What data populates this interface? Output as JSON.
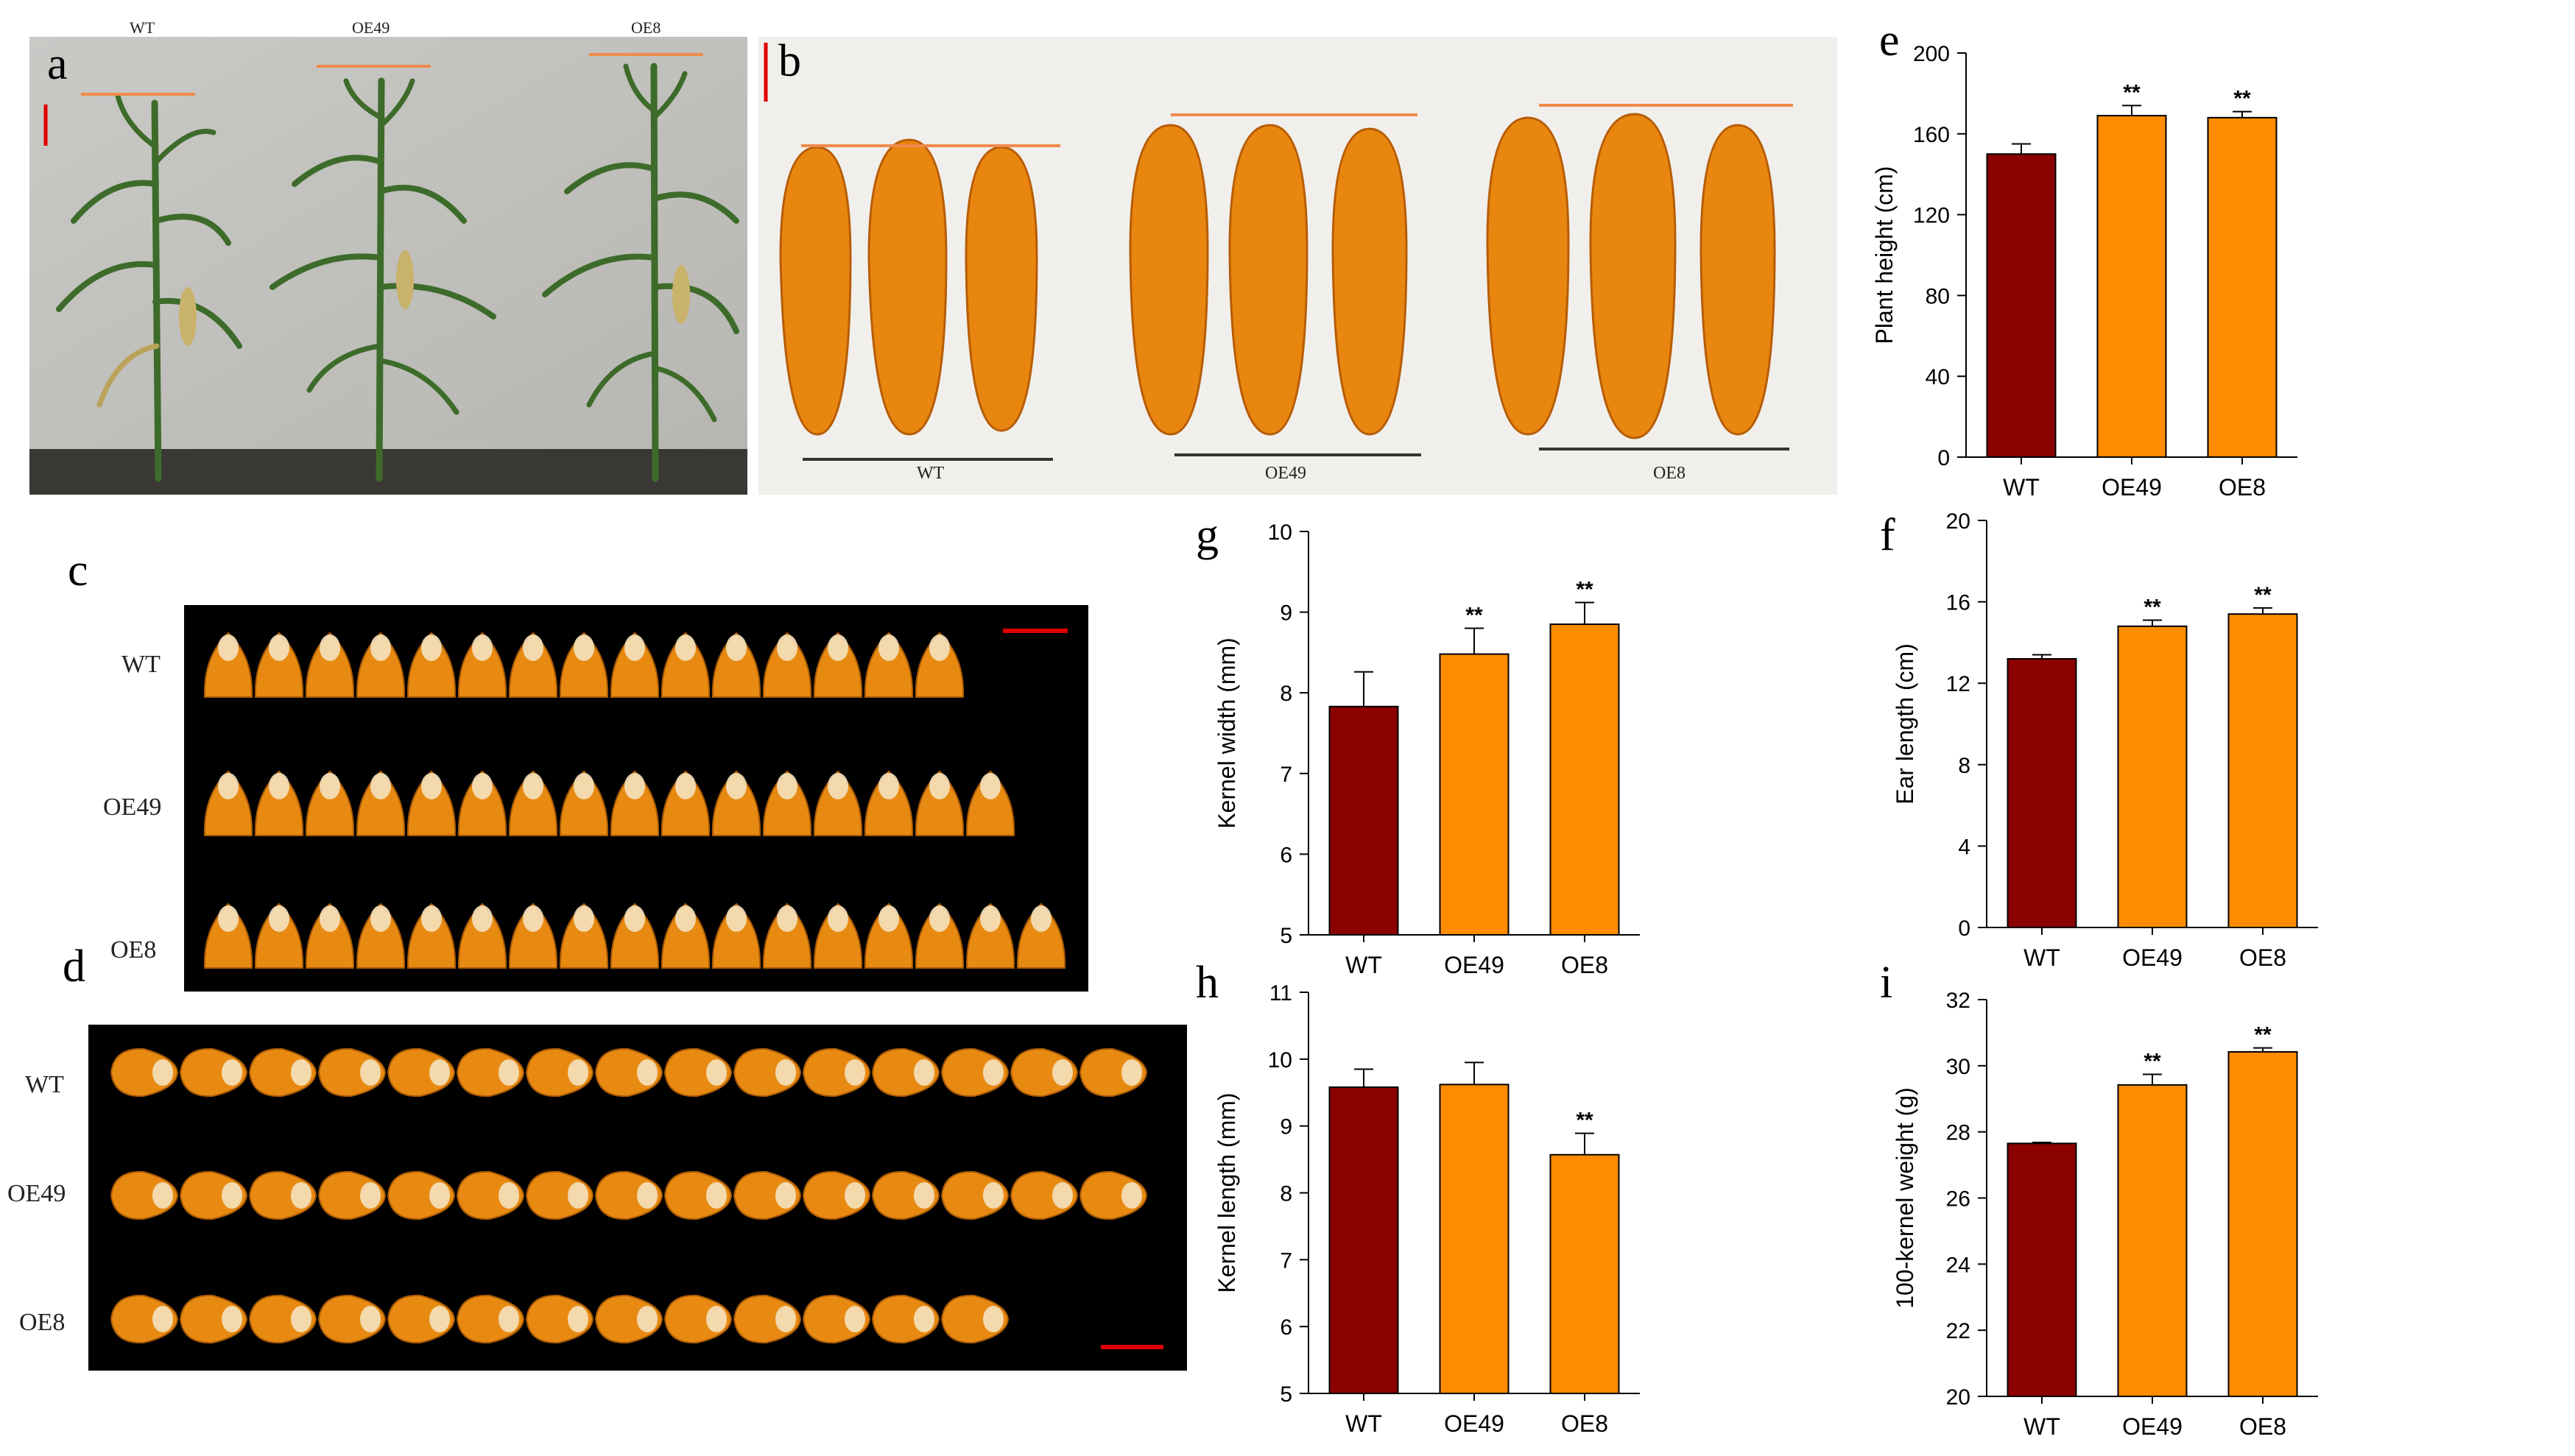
{
  "panels": {
    "a": {
      "letter": "a",
      "plants": [
        "WT",
        "OE49",
        "OE8"
      ]
    },
    "b": {
      "letter": "b",
      "ears": [
        "WT",
        "OE49",
        "OE8"
      ]
    },
    "c": {
      "letter": "c",
      "rows": [
        "WT",
        "OE49",
        "OE8"
      ]
    },
    "d": {
      "letter": "d",
      "rows": [
        "WT",
        "OE49",
        "OE8"
      ]
    }
  },
  "colors": {
    "wt_bar": "#8b0000",
    "oe_bar": "#ff8c00",
    "scale_bar": "#e00000",
    "height_line": "#f08a4b",
    "kernel": "#e88a12",
    "photo_bg": "#000000"
  },
  "chart_data": [
    {
      "id": "e",
      "letter": "e",
      "type": "bar",
      "categories": [
        "WT",
        "OE49",
        "OE8"
      ],
      "values": [
        150,
        169,
        168
      ],
      "errors": [
        5,
        5,
        3
      ],
      "significance": [
        "",
        "**",
        "**"
      ],
      "ylabel": "Plant height (cm)",
      "ylim": [
        0,
        200
      ],
      "yticks": [
        0,
        40,
        80,
        120,
        160,
        200
      ]
    },
    {
      "id": "g",
      "letter": "g",
      "type": "bar",
      "categories": [
        "WT",
        "OE49",
        "OE8"
      ],
      "values": [
        7.83,
        8.48,
        8.85
      ],
      "errors": [
        0.43,
        0.32,
        0.27
      ],
      "significance": [
        "",
        "**",
        "**"
      ],
      "ylabel": "Kernel width (mm)",
      "ylim": [
        5,
        10
      ],
      "yticks": [
        5,
        6,
        7,
        8,
        9,
        10
      ]
    },
    {
      "id": "f",
      "letter": "f",
      "type": "bar",
      "categories": [
        "WT",
        "OE49",
        "OE8"
      ],
      "values": [
        13.2,
        14.8,
        15.4
      ],
      "errors": [
        0.2,
        0.3,
        0.3
      ],
      "significance": [
        "",
        "**",
        "**"
      ],
      "ylabel": "Ear length (cm)",
      "ylim": [
        0,
        20
      ],
      "yticks": [
        0,
        4,
        8,
        12,
        16,
        20
      ]
    },
    {
      "id": "h",
      "letter": "h",
      "type": "bar",
      "categories": [
        "WT",
        "OE49",
        "OE8"
      ],
      "values": [
        9.58,
        9.62,
        8.57
      ],
      "errors": [
        0.27,
        0.33,
        0.32
      ],
      "significance": [
        "",
        "",
        "**"
      ],
      "ylabel": "Kernel length (mm)",
      "ylim": [
        5,
        11
      ],
      "yticks": [
        5,
        6,
        7,
        8,
        9,
        10,
        11
      ]
    },
    {
      "id": "i",
      "letter": "i",
      "type": "bar",
      "categories": [
        "WT",
        "OE49",
        "OE8"
      ],
      "values": [
        27.65,
        29.42,
        30.42
      ],
      "errors": [
        0.03,
        0.32,
        0.12
      ],
      "significance": [
        "",
        "**",
        "**"
      ],
      "ylabel": "100-kernel weight (g)",
      "ylim": [
        20,
        32
      ],
      "yticks": [
        20,
        22,
        24,
        26,
        28,
        30,
        32
      ]
    }
  ]
}
